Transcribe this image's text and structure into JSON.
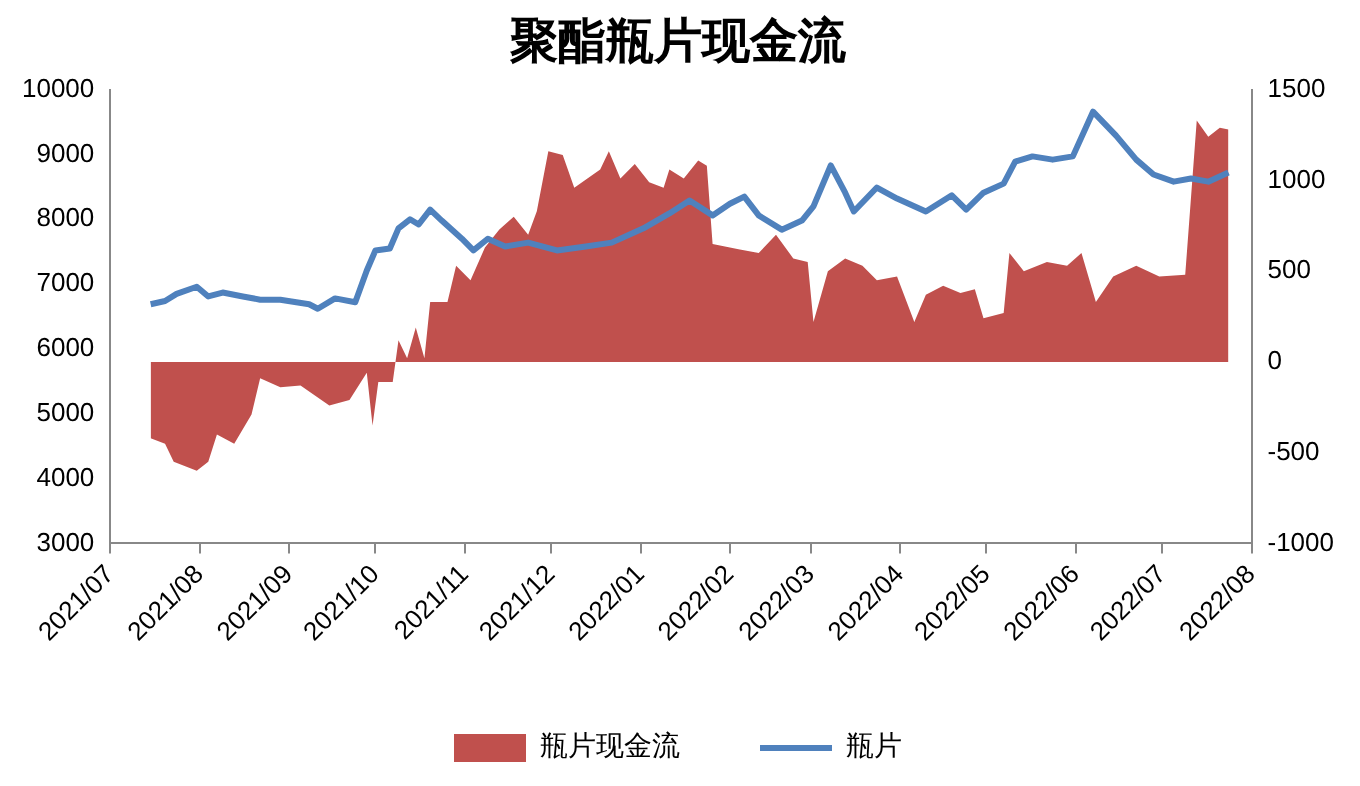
{
  "chart_data": {
    "type": "line",
    "title": "聚酯瓶片现金流",
    "xlim": [
      "2021-07-01",
      "2022-08-01"
    ],
    "xticks": [
      {
        "value": "2021-07-01",
        "label": "2021/07"
      },
      {
        "value": "2021-08-01",
        "label": "2021/08"
      },
      {
        "value": "2021-09-01",
        "label": "2021/09"
      },
      {
        "value": "2021-10-01",
        "label": "2021/10"
      },
      {
        "value": "2021-11-01",
        "label": "2021/11"
      },
      {
        "value": "2021-12-01",
        "label": "2021/12"
      },
      {
        "value": "2022-01-01",
        "label": "2022/01"
      },
      {
        "value": "2022-02-01",
        "label": "2022/02"
      },
      {
        "value": "2022-03-01",
        "label": "2022/03"
      },
      {
        "value": "2022-04-01",
        "label": "2022/04"
      },
      {
        "value": "2022-05-01",
        "label": "2022/05"
      },
      {
        "value": "2022-06-01",
        "label": "2022/06"
      },
      {
        "value": "2022-07-01",
        "label": "2022/07"
      },
      {
        "value": "2022-08-01",
        "label": "2022/08"
      }
    ],
    "ylim": [
      3000,
      10000
    ],
    "yticks": [
      3000,
      4000,
      5000,
      6000,
      7000,
      8000,
      9000,
      10000
    ],
    "y2lim": [
      -1000,
      1500
    ],
    "y2ticks": [
      -1000,
      -500,
      0,
      500,
      1000,
      1500
    ],
    "legend": "bottom",
    "grid": false,
    "marker": "none",
    "line_style": "solid",
    "series": [
      {
        "name": "瓶片现金流",
        "type": "area",
        "axis": "y2",
        "color": "#c0504d",
        "x": [
          "2021-07-15",
          "2021-07-20",
          "2021-07-23",
          "2021-07-31",
          "2021-08-04",
          "2021-08-07",
          "2021-08-13",
          "2021-08-19",
          "2021-08-22",
          "2021-08-29",
          "2021-09-05",
          "2021-09-15",
          "2021-09-22",
          "2021-09-28",
          "2021-09-30",
          "2021-10-02",
          "2021-10-07",
          "2021-10-09",
          "2021-10-12",
          "2021-10-15",
          "2021-10-18",
          "2021-10-20",
          "2021-10-26",
          "2021-10-29",
          "2021-11-03",
          "2021-11-08",
          "2021-11-13",
          "2021-11-18",
          "2021-11-23",
          "2021-11-26",
          "2021-11-30",
          "2021-12-05",
          "2021-12-09",
          "2021-12-18",
          "2021-12-21",
          "2021-12-25",
          "2021-12-30",
          "2022-01-04",
          "2022-01-09",
          "2022-01-11",
          "2022-01-16",
          "2022-01-21",
          "2022-01-24",
          "2022-01-26",
          "2022-02-04",
          "2022-02-11",
          "2022-02-17",
          "2022-02-23",
          "2022-02-28",
          "2022-03-02",
          "2022-03-07",
          "2022-03-13",
          "2022-03-19",
          "2022-03-24",
          "2022-03-31",
          "2022-04-06",
          "2022-04-10",
          "2022-04-16",
          "2022-04-22",
          "2022-04-27",
          "2022-04-30",
          "2022-05-07",
          "2022-05-09",
          "2022-05-14",
          "2022-05-22",
          "2022-05-29",
          "2022-06-03",
          "2022-06-08",
          "2022-06-14",
          "2022-06-22",
          "2022-06-30",
          "2022-07-09",
          "2022-07-13",
          "2022-07-17",
          "2022-07-21",
          "2022-07-24"
        ],
        "values": [
          -420,
          -450,
          -550,
          -600,
          -550,
          -400,
          -450,
          -290,
          -90,
          -140,
          -130,
          -240,
          -210,
          -60,
          -350,
          -110,
          -110,
          120,
          20,
          190,
          20,
          330,
          330,
          530,
          450,
          630,
          730,
          800,
          700,
          830,
          1160,
          1140,
          960,
          1060,
          1160,
          1010,
          1090,
          990,
          960,
          1060,
          1010,
          1110,
          1080,
          650,
          620,
          600,
          700,
          570,
          550,
          220,
          500,
          570,
          530,
          450,
          470,
          220,
          370,
          420,
          380,
          400,
          240,
          270,
          600,
          500,
          550,
          530,
          600,
          330,
          470,
          530,
          470,
          480,
          1330,
          1240,
          1290,
          1280
        ]
      },
      {
        "name": "瓶片",
        "axis": "y",
        "color": "#4f81bd",
        "x": [
          "2021-07-15",
          "2021-07-20",
          "2021-07-24",
          "2021-07-31",
          "2021-08-04",
          "2021-08-09",
          "2021-08-16",
          "2021-08-22",
          "2021-08-29",
          "2021-09-08",
          "2021-09-11",
          "2021-09-17",
          "2021-09-24",
          "2021-09-28",
          "2021-10-01",
          "2021-10-06",
          "2021-10-09",
          "2021-10-13",
          "2021-10-16",
          "2021-10-20",
          "2021-10-24",
          "2021-10-31",
          "2021-11-04",
          "2021-11-09",
          "2021-11-15",
          "2021-11-23",
          "2021-12-03",
          "2021-12-13",
          "2021-12-22",
          "2022-01-02",
          "2022-01-11",
          "2022-01-18",
          "2022-01-26",
          "2022-02-01",
          "2022-02-06",
          "2022-02-11",
          "2022-02-19",
          "2022-02-26",
          "2022-03-02",
          "2022-03-08",
          "2022-03-13",
          "2022-03-16",
          "2022-03-24",
          "2022-03-31",
          "2022-04-10",
          "2022-04-19",
          "2022-04-24",
          "2022-04-30",
          "2022-05-07",
          "2022-05-11",
          "2022-05-17",
          "2022-05-24",
          "2022-05-31",
          "2022-06-07",
          "2022-06-15",
          "2022-06-22",
          "2022-06-28",
          "2022-07-05",
          "2022-07-11",
          "2022-07-17",
          "2022-07-24"
        ],
        "values": [
          6690,
          6740,
          6850,
          6960,
          6810,
          6870,
          6810,
          6760,
          6760,
          6690,
          6620,
          6780,
          6720,
          7210,
          7520,
          7550,
          7860,
          8000,
          7920,
          8150,
          7980,
          7700,
          7520,
          7700,
          7580,
          7640,
          7520,
          7580,
          7640,
          7860,
          8090,
          8290,
          8060,
          8240,
          8350,
          8060,
          7840,
          7980,
          8200,
          8830,
          8410,
          8120,
          8490,
          8320,
          8120,
          8370,
          8150,
          8410,
          8550,
          8890,
          8970,
          8920,
          8970,
          9660,
          9290,
          8920,
          8690,
          8580,
          8630,
          8580,
          8720
        ]
      }
    ]
  }
}
